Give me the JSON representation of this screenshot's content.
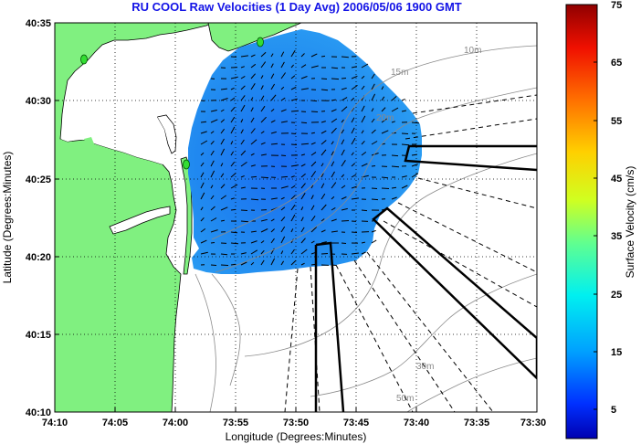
{
  "title": "RU COOL Raw Velocities (1 Day Avg) 2006/05/06 1900 GMT",
  "map": {
    "xlabel": "Longitude (Degrees:Minutes)",
    "ylabel": "Latitude (Degrees:Minutes)",
    "x_ticks": [
      "74:10",
      "74:05",
      "74:00",
      "73:55",
      "73:50",
      "73:45",
      "73:40",
      "73:35",
      "73:30"
    ],
    "y_ticks": [
      "40:35",
      "40:30",
      "40:25",
      "40:20",
      "40:15",
      "40:10"
    ],
    "depth_labels": [
      "10m",
      "15m",
      "20m",
      "30m",
      "50m"
    ],
    "grid": true,
    "colors": {
      "land": "#80f080",
      "ocean": "#ffffff",
      "title": "#1414e6",
      "velocity_low": "#1a78f0",
      "velocity_mid": "#1e8cf0"
    }
  },
  "colorbar": {
    "label": "Surface Velocity (cm/s)",
    "ticks": [
      "75",
      "65",
      "55",
      "45",
      "35",
      "25",
      "15",
      "5"
    ],
    "min": 0,
    "max": 75,
    "colormap": "jet"
  }
}
